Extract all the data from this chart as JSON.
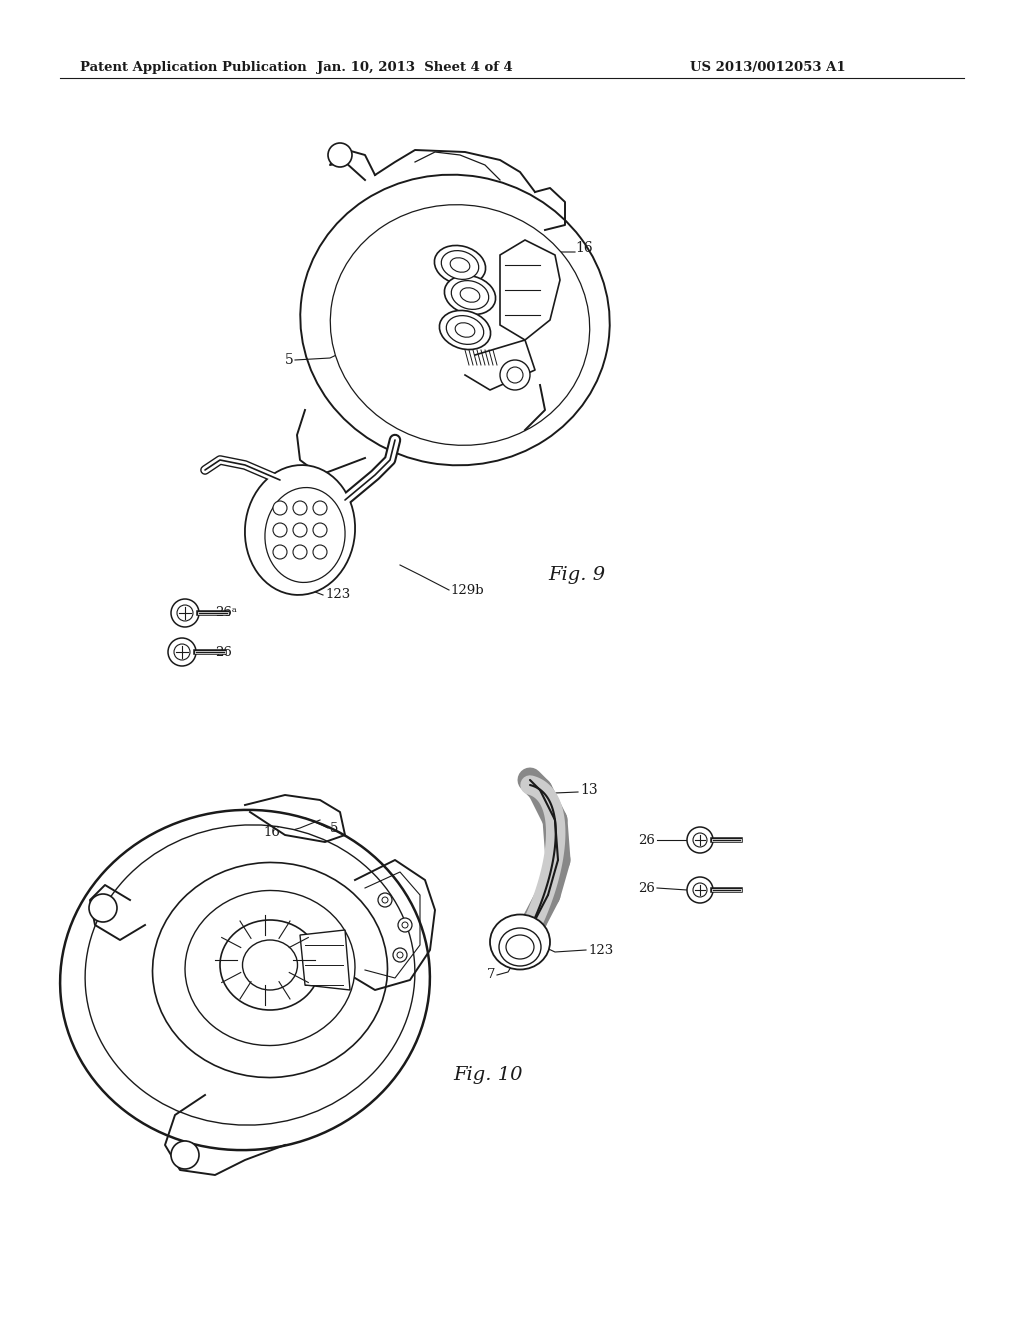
{
  "bg_color": "#ffffff",
  "line_color": "#1a1a1a",
  "header_left": "Patent Application Publication",
  "header_mid": "Jan. 10, 2013  Sheet 4 of 4",
  "header_right": "US 2013/0012053 A1",
  "fig9_label": "Fig. 9",
  "fig10_label": "Fig. 10"
}
